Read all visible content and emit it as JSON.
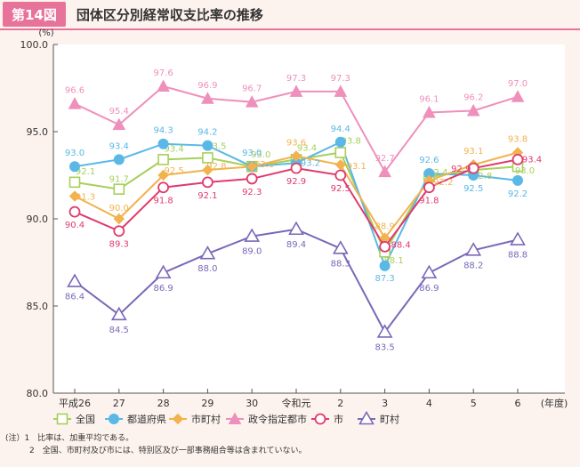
{
  "header": {
    "figure_label": "第14図",
    "title": "団体区分別経常収支比率の推移"
  },
  "chart_data": {
    "type": "line",
    "y_unit": "(%)",
    "x_unit": "(年度)",
    "ylim": [
      80.0,
      100.0
    ],
    "y_ticks": [
      "100.0",
      "95.0",
      "90.0",
      "85.0",
      "80.0"
    ],
    "categories": [
      "平成26",
      "27",
      "28",
      "29",
      "30",
      "令和元",
      "2",
      "3",
      "4",
      "5",
      "6"
    ],
    "grid": false,
    "legend_position": "bottom",
    "series": [
      {
        "name": "全国",
        "marker": "square",
        "color": "#a8cf5a",
        "values": [
          92.1,
          91.7,
          93.4,
          93.5,
          93.0,
          93.4,
          93.8,
          88.1,
          92.4,
          92.8,
          93.0
        ],
        "labels": [
          "92.1",
          "91.7",
          "93.4",
          "93.5",
          "93.0",
          "93.4",
          "93.8",
          "88.1",
          "92.4",
          "92.8",
          "93.0"
        ]
      },
      {
        "name": "都道府県",
        "marker": "circle",
        "color": "#5ab8e6",
        "values": [
          93.0,
          93.4,
          94.3,
          94.2,
          93.0,
          93.2,
          94.4,
          87.3,
          92.6,
          92.5,
          92.2
        ],
        "labels": [
          "93.0",
          "93.4",
          "94.3",
          "94.2",
          "93.0",
          "93.2",
          "94.4",
          "87.3",
          "92.6",
          "92.5",
          "92.2"
        ]
      },
      {
        "name": "市町村",
        "marker": "diamond",
        "color": "#f2b24e",
        "values": [
          91.3,
          90.0,
          92.5,
          92.8,
          93.0,
          93.6,
          93.1,
          88.9,
          92.2,
          93.1,
          93.8
        ],
        "labels": [
          "91.3",
          "90.0",
          "92.5",
          "92.8",
          "93.0",
          "93.6",
          "93.1",
          "88.9",
          "92.2",
          "93.1",
          "93.8"
        ]
      },
      {
        "name": "政令指定都市",
        "marker": "triangle-filled",
        "color": "#ef8fbc",
        "values": [
          96.6,
          95.4,
          97.6,
          96.9,
          96.7,
          97.3,
          97.3,
          92.7,
          96.1,
          96.2,
          97.0
        ],
        "labels": [
          "96.6",
          "95.4",
          "97.6",
          "96.9",
          "96.7",
          "97.3",
          "97.3",
          "92.7",
          "96.1",
          "96.2",
          "97.0"
        ]
      },
      {
        "name": "市",
        "marker": "circle-open",
        "color": "#e03a6e",
        "values": [
          90.4,
          89.3,
          91.8,
          92.1,
          92.3,
          92.9,
          92.5,
          88.4,
          91.8,
          92.9,
          93.4
        ],
        "labels": [
          "90.4",
          "89.3",
          "91.8",
          "92.1",
          "92.3",
          "92.9",
          "92.5",
          "88.4",
          "91.8",
          "92.9",
          "93.4"
        ]
      },
      {
        "name": "町村",
        "marker": "triangle-open",
        "color": "#7b68b8",
        "values": [
          86.4,
          84.5,
          86.9,
          88.0,
          89.0,
          89.4,
          88.3,
          83.5,
          86.9,
          88.2,
          88.8
        ],
        "labels": [
          "86.4",
          "84.5",
          "86.9",
          "88.0",
          "89.0",
          "89.4",
          "88.3",
          "83.5",
          "86.9",
          "88.2",
          "88.8"
        ]
      }
    ]
  },
  "notes": {
    "n1": "(注）1　比率は、加重平均である。",
    "n2": "　　　2　全国、市町村及び市には、特別区及び一部事務組合等は含まれていない。"
  }
}
